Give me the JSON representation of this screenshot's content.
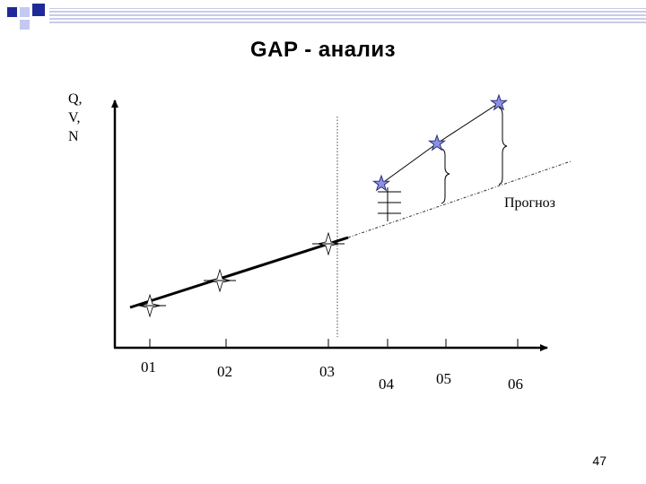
{
  "slide": {
    "title": "GAP - анализ",
    "page_number": "47"
  },
  "axis": {
    "y_label_lines": [
      "Q,",
      "V,",
      "N"
    ],
    "x_ticks": [
      "01",
      "02",
      "03",
      "04",
      "05",
      "06"
    ]
  },
  "annotations": {
    "forecast": "Прогноз"
  },
  "colors": {
    "corner_square_dark": "#1f2a9a",
    "corner_square_light": "#c3c9f0",
    "corner_stripe": "#c9cbe8",
    "star_fill": "#8d91e3",
    "star_stroke": "#2b2f7a"
  },
  "markers": {
    "actual_periods": [
      "01",
      "02",
      "03"
    ],
    "target_periods": [
      "04",
      "05",
      "06"
    ]
  }
}
